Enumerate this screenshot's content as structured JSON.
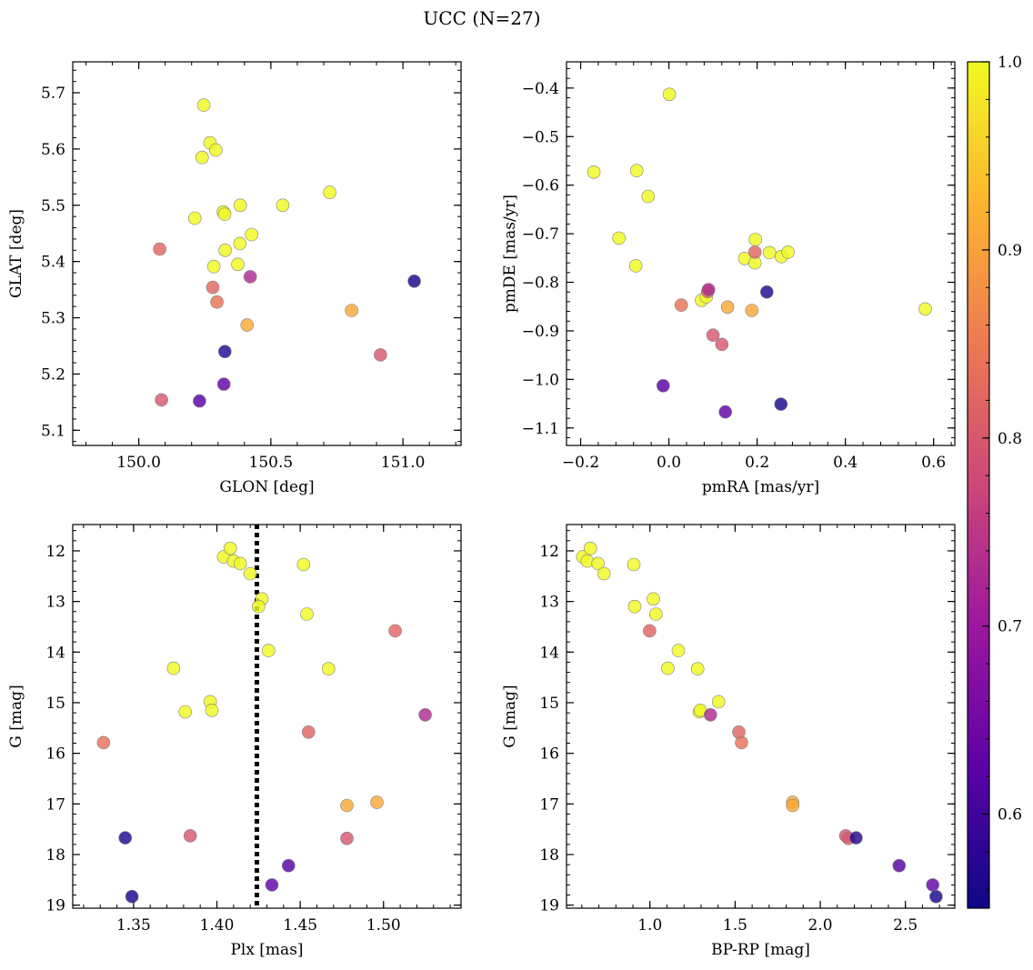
{
  "suptitle": "UCC (N=27)",
  "colorbar": {
    "min": 0.55,
    "max": 1.0,
    "ticks": [
      0.6,
      0.7,
      0.8,
      0.9,
      1.0
    ],
    "tick_labels": [
      "0.6",
      "0.7",
      "0.8",
      "0.9",
      "1.0"
    ],
    "colormap": "plasma",
    "stops": [
      "#0d0887",
      "#5c01a6",
      "#9c179e",
      "#cc4778",
      "#ed7953",
      "#fdb42f",
      "#f0f921"
    ]
  },
  "marker_edge_color": "#808080",
  "points": {
    "glon": [
      150.246,
      150.27,
      150.292,
      150.24,
      150.212,
      150.32,
      150.325,
      150.384,
      150.545,
      150.723,
      150.079,
      150.327,
      150.383,
      150.427,
      150.284,
      150.375,
      150.422,
      150.28,
      150.296,
      150.41,
      150.806,
      150.326,
      150.915,
      150.086,
      150.23,
      150.322,
      151.043
    ],
    "glat": [
      5.678,
      5.611,
      5.598,
      5.585,
      5.477,
      5.488,
      5.484,
      5.5,
      5.5,
      5.523,
      5.422,
      5.42,
      5.432,
      5.448,
      5.391,
      5.395,
      5.373,
      5.354,
      5.328,
      5.287,
      5.313,
      5.24,
      5.234,
      5.154,
      5.152,
      5.182,
      5.365
    ],
    "pmra": [
      0.001,
      -0.17,
      -0.073,
      -0.047,
      -0.113,
      -0.075,
      0.581,
      0.196,
      0.172,
      0.228,
      0.195,
      0.255,
      0.27,
      0.195,
      0.074,
      0.085,
      0.09,
      0.088,
      0.028,
      0.133,
      0.188,
      0.222,
      0.1,
      0.12,
      -0.013,
      0.128,
      0.254
    ],
    "pmde": [
      -0.413,
      -0.573,
      -0.57,
      -0.623,
      -0.709,
      -0.766,
      -0.855,
      -0.712,
      -0.751,
      -0.739,
      -0.738,
      -0.747,
      -0.738,
      -0.76,
      -0.837,
      -0.83,
      -0.815,
      -0.819,
      -0.847,
      -0.851,
      -0.858,
      -0.82,
      -0.909,
      -0.928,
      -1.013,
      -1.067,
      -1.051
    ],
    "plx": [
      1.404,
      1.408,
      1.41,
      1.414,
      1.42,
      1.452,
      1.427,
      1.425,
      1.454,
      1.431,
      1.507,
      1.374,
      1.467,
      1.396,
      1.381,
      1.397,
      1.525,
      1.455,
      1.332,
      1.496,
      1.478,
      1.345,
      1.384,
      1.478,
      1.443,
      1.433,
      1.349
    ],
    "g": [
      12.12,
      11.95,
      12.2,
      12.25,
      12.45,
      12.27,
      12.95,
      13.1,
      13.25,
      13.97,
      13.58,
      14.32,
      14.33,
      14.98,
      15.18,
      15.15,
      15.24,
      15.58,
      15.79,
      16.97,
      17.03,
      17.67,
      17.63,
      17.68,
      18.22,
      18.6,
      18.83
    ],
    "bprp": [
      0.605,
      0.65,
      0.632,
      0.695,
      0.73,
      0.905,
      1.02,
      0.91,
      1.035,
      1.167,
      0.998,
      1.105,
      1.28,
      1.403,
      1.29,
      1.296,
      1.355,
      1.522,
      1.538,
      1.838,
      1.838,
      2.21,
      2.15,
      2.165,
      2.463,
      2.66,
      2.68
    ],
    "prob": [
      1.0,
      1.0,
      1.0,
      1.0,
      1.0,
      1.0,
      1.0,
      1.0,
      1.0,
      1.0,
      0.82,
      1.0,
      1.0,
      1.0,
      1.0,
      1.0,
      0.73,
      0.82,
      0.84,
      0.91,
      0.91,
      0.57,
      0.8,
      0.8,
      0.62,
      0.63,
      0.56
    ]
  },
  "chart_data": [
    {
      "type": "scatter",
      "panel": "top-left",
      "xlabel": "GLON [deg]",
      "ylabel": "GLAT [deg]",
      "xlim": [
        149.75,
        151.22
      ],
      "ylim": [
        5.073,
        5.755
      ],
      "invert_y": false,
      "x_field": "glon",
      "y_field": "glat",
      "xticks": [
        150.0,
        150.5,
        151.0
      ],
      "xtick_labels": [
        "150.0",
        "150.5",
        "151.0"
      ],
      "yticks": [
        5.1,
        5.2,
        5.3,
        5.4,
        5.5,
        5.6,
        5.7
      ],
      "ytick_labels": [
        "5.1",
        "5.2",
        "5.3",
        "5.4",
        "5.5",
        "5.6",
        "5.7"
      ]
    },
    {
      "type": "scatter",
      "panel": "top-right",
      "xlabel": "pmRA [mas/yr]",
      "ylabel": "pmDE [mas/yr]",
      "xlim": [
        -0.232,
        0.648
      ],
      "ylim": [
        -1.136,
        -0.346
      ],
      "invert_y": false,
      "x_field": "pmra",
      "y_field": "pmde",
      "xticks": [
        -0.2,
        0.0,
        0.2,
        0.4,
        0.6
      ],
      "xtick_labels": [
        "−0.2",
        "0.0",
        "0.2",
        "0.4",
        "0.6"
      ],
      "yticks": [
        -1.1,
        -1.0,
        -0.9,
        -0.8,
        -0.7,
        -0.6,
        -0.5,
        -0.4
      ],
      "ytick_labels": [
        "−1.1",
        "−1.0",
        "−0.9",
        "−0.8",
        "−0.7",
        "−0.6",
        "−0.5",
        "−0.4"
      ]
    },
    {
      "type": "scatter",
      "panel": "bottom-left",
      "xlabel": "Plx [mas]",
      "ylabel": "G [mag]",
      "xlim": [
        1.3135,
        1.5465
      ],
      "ylim": [
        11.48,
        19.06
      ],
      "invert_y": true,
      "x_field": "plx",
      "y_field": "g",
      "vline": 1.424,
      "xticks": [
        1.35,
        1.4,
        1.45,
        1.5
      ],
      "xtick_labels": [
        "1.35",
        "1.40",
        "1.45",
        "1.50"
      ],
      "yticks": [
        12,
        13,
        14,
        15,
        16,
        17,
        18,
        19
      ],
      "ytick_labels": [
        "12",
        "13",
        "14",
        "15",
        "16",
        "17",
        "18",
        "19"
      ]
    },
    {
      "type": "scatter",
      "panel": "bottom-right",
      "xlabel": "BP-RP [mag]",
      "ylabel": "G [mag]",
      "xlim": [
        0.51,
        2.79
      ],
      "ylim": [
        11.48,
        19.06
      ],
      "invert_y": true,
      "x_field": "bprp",
      "y_field": "g",
      "xticks": [
        1.0,
        1.5,
        2.0,
        2.5
      ],
      "xtick_labels": [
        "1.0",
        "1.5",
        "2.0",
        "2.5"
      ],
      "yticks": [
        12,
        13,
        14,
        15,
        16,
        17,
        18,
        19
      ],
      "ytick_labels": [
        "12",
        "13",
        "14",
        "15",
        "16",
        "17",
        "18",
        "19"
      ]
    }
  ]
}
